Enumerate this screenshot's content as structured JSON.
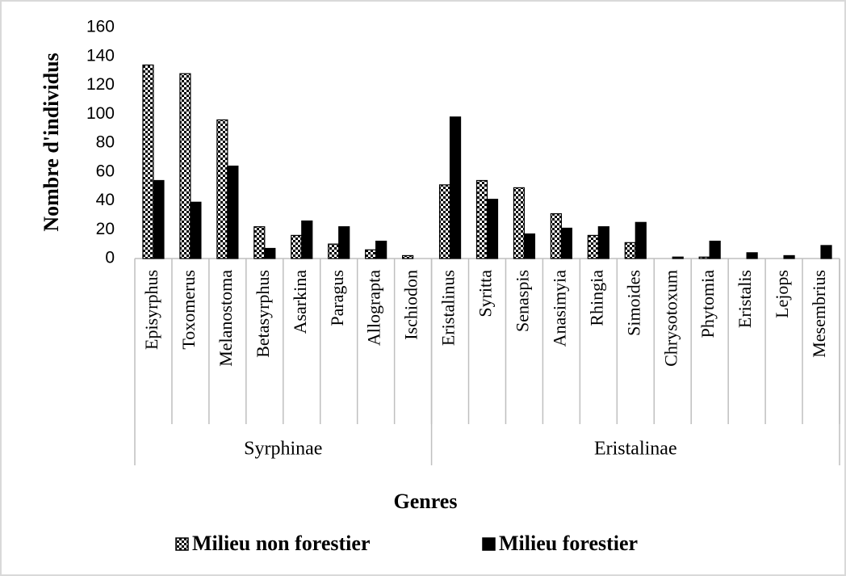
{
  "chart_data": {
    "type": "bar",
    "y_label": "Nombre d'individus",
    "x_label": "Genres",
    "groups": [
      {
        "name": "Syrphinae",
        "categories": [
          "Episyrphus",
          "Toxomerus",
          "Melanostoma",
          "Betasyrphus",
          "Asarkina",
          "Paragus",
          "Allograpta",
          "Ischiodon"
        ]
      },
      {
        "name": "Eristalinae",
        "categories": [
          "Eristalinus",
          "Syritta",
          "Senaspis",
          "Anasimyia",
          "Rhingia",
          "Simoides",
          "Chrysotoxum",
          "Phytomia",
          "Eristalis",
          "Lejops",
          "Mesembrius"
        ]
      }
    ],
    "series": [
      {
        "name": "Milieu non forestier",
        "color": "#000000",
        "pattern": "checker",
        "values": [
          134,
          128,
          96,
          22,
          16,
          10,
          6,
          2,
          51,
          54,
          49,
          31,
          16,
          11,
          0,
          1,
          0,
          0,
          0
        ]
      },
      {
        "name": "Milieu forestier",
        "color": "#000000",
        "pattern": "solid",
        "values": [
          54,
          39,
          64,
          7,
          26,
          22,
          12,
          0,
          98,
          41,
          17,
          21,
          22,
          25,
          1,
          12,
          4,
          2,
          9
        ]
      }
    ],
    "ylim": [
      0,
      160
    ],
    "yticks": [
      0,
      20,
      40,
      60,
      80,
      100,
      120,
      140,
      160
    ],
    "legend": "bottom"
  }
}
